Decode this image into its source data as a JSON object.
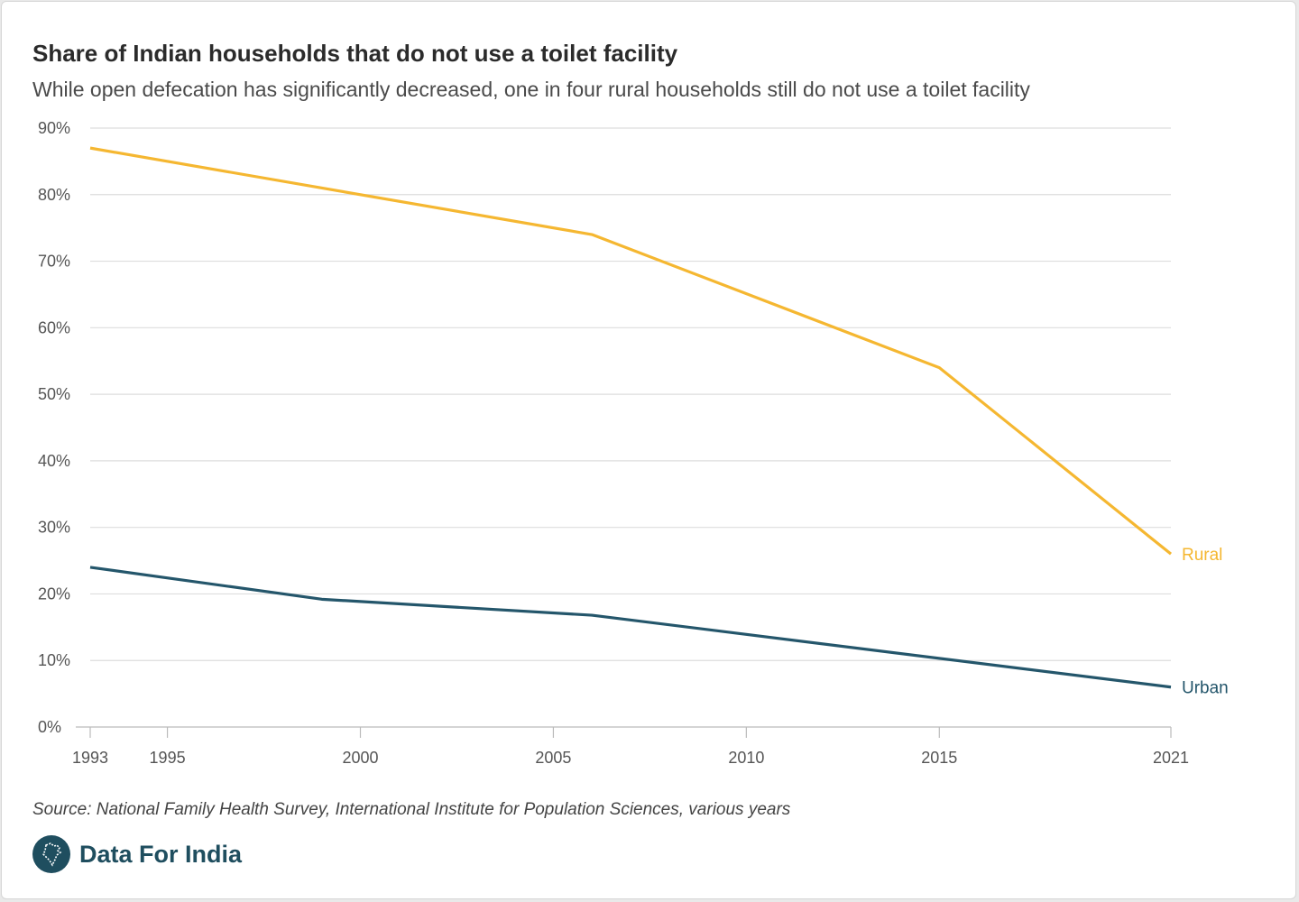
{
  "title": "Share of Indian households that do not use a toilet facility",
  "subtitle": "While open defecation has significantly decreased, one in four rural households still do not use a toilet facility",
  "source": "Source: National Family Health Survey, International Institute for Population Sciences, various years",
  "brand": {
    "name": "Data For India",
    "logo_icon": "india-map-icon",
    "color": "#1f4e5f"
  },
  "colors": {
    "rural": "#f5b731",
    "urban": "#24566b",
    "grid": "#dddddd",
    "axis": "#bbbbbb"
  },
  "chart_data": {
    "type": "line",
    "title": "Share of Indian households that do not use a toilet facility",
    "subtitle": "While open defecation has significantly decreased, one in four rural households still do not use a toilet facility",
    "xlim": [
      1993,
      2021
    ],
    "ylim": [
      0,
      90
    ],
    "x_ticks": [
      1993,
      1995,
      2000,
      2005,
      2010,
      2015,
      2021
    ],
    "x_tick_labels": [
      "1993",
      "1995",
      "2000",
      "2005",
      "2010",
      "2015",
      "2021"
    ],
    "y_ticks": [
      0,
      10,
      20,
      30,
      40,
      50,
      60,
      70,
      80,
      90
    ],
    "y_tick_labels": [
      "0%",
      "10%",
      "20%",
      "30%",
      "40%",
      "50%",
      "60%",
      "70%",
      "80%",
      "90%"
    ],
    "grid": "horizontal",
    "legend": "direct labels at line ends",
    "series": [
      {
        "name": "Rural",
        "color": "#f5b731",
        "x": [
          1993,
          2006,
          2015,
          2021
        ],
        "y": [
          87.0,
          74.0,
          54.0,
          26.0
        ]
      },
      {
        "name": "Urban",
        "color": "#24566b",
        "x": [
          1993,
          1999,
          2006,
          2021
        ],
        "y": [
          24.0,
          19.2,
          16.8,
          6.0
        ]
      }
    ]
  }
}
